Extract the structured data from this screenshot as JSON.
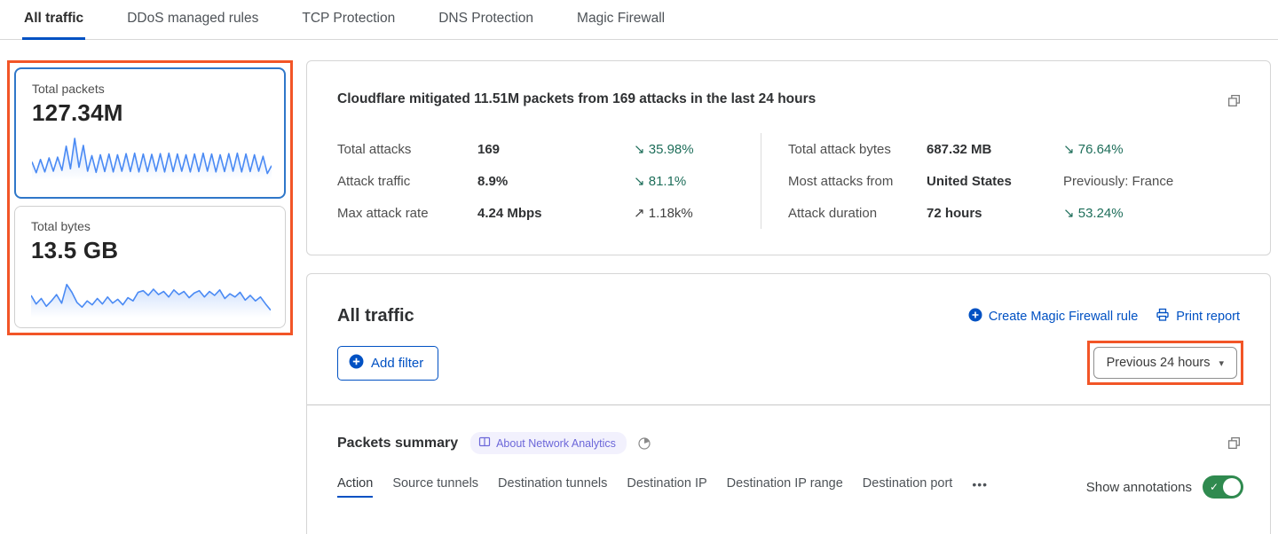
{
  "colors": {
    "link_blue": "#0051c3",
    "sparkline_blue": "#4a8af4",
    "selected_card_border": "#2f77c9",
    "highlight_orange": "#f25527",
    "trend_green": "#1e6e5a",
    "trend_neutral": "#3f3f3f",
    "previously_gray": "#4f4f4f",
    "toggle_green": "#2f8a4f",
    "badge_purple": "#6c67d9"
  },
  "tabs": [
    {
      "label": "All traffic",
      "active": true
    },
    {
      "label": "DDoS managed rules",
      "active": false
    },
    {
      "label": "TCP Protection",
      "active": false
    },
    {
      "label": "DNS Protection",
      "active": false
    },
    {
      "label": "Magic Firewall",
      "active": false
    }
  ],
  "metrics": {
    "packets": {
      "label": "Total packets",
      "value": "127.34M",
      "sparkline": [
        40,
        12,
        46,
        14,
        50,
        16,
        52,
        18,
        80,
        22,
        100,
        26,
        82,
        16,
        56,
        13,
        58,
        15,
        60,
        14,
        58,
        16,
        61,
        15,
        62,
        14,
        60,
        15,
        59,
        16,
        61,
        14,
        62,
        15,
        60,
        16,
        58,
        14,
        60,
        15,
        62,
        16,
        60,
        14,
        58,
        15,
        61,
        16,
        62,
        14,
        60,
        15,
        58,
        16,
        54,
        10,
        30
      ]
    },
    "bytes": {
      "label": "Total bytes",
      "value": "13.5 GB",
      "sparkline": [
        50,
        28,
        42,
        22,
        36,
        52,
        30,
        78,
        58,
        32,
        20,
        36,
        26,
        42,
        28,
        46,
        30,
        40,
        26,
        44,
        36,
        58,
        62,
        50,
        66,
        52,
        60,
        46,
        64,
        52,
        60,
        44,
        56,
        62,
        46,
        60,
        50,
        64,
        42,
        54,
        46,
        58,
        38,
        50,
        36,
        46,
        28,
        12
      ]
    }
  },
  "attack_summary": {
    "title": "Cloudflare mitigated 11.51M packets from 169 attacks in the last 24 hours",
    "stats_left": [
      {
        "label": "Total attacks",
        "value": "169",
        "delta": "↘ 35.98%",
        "delta_color": "#1e6e5a"
      },
      {
        "label": "Attack traffic",
        "value": "8.9%",
        "delta": "↘ 81.1%",
        "delta_color": "#1e6e5a"
      },
      {
        "label": "Max attack rate",
        "value": "4.24 Mbps",
        "delta": "↗ 1.18k%",
        "delta_color": "#3f3f3f"
      }
    ],
    "stats_right": [
      {
        "label": "Total attack bytes",
        "value": "687.32 MB",
        "delta": "↘ 76.64%",
        "delta_color": "#1e6e5a"
      },
      {
        "label": "Most attacks from",
        "value": "United States",
        "delta": "Previously: France",
        "delta_color": "#4f4f4f"
      },
      {
        "label": "Attack duration",
        "value": "72 hours",
        "delta": "↘ 53.24%",
        "delta_color": "#1e6e5a"
      }
    ]
  },
  "traffic_panel": {
    "title": "All traffic",
    "create_rule_label": "Create Magic Firewall rule",
    "print_label": "Print report",
    "add_filter_label": "Add filter",
    "time_range": "Previous 24 hours",
    "caret": "▾"
  },
  "packets_summary": {
    "title": "Packets summary",
    "badge_label": "About Network Analytics",
    "subtabs": [
      {
        "label": "Action",
        "active": true
      },
      {
        "label": "Source tunnels",
        "active": false
      },
      {
        "label": "Destination tunnels",
        "active": false
      },
      {
        "label": "Destination IP",
        "active": false
      },
      {
        "label": "Destination IP range",
        "active": false
      },
      {
        "label": "Destination port",
        "active": false
      }
    ],
    "more_label": "•••",
    "show_annotations_label": "Show annotations",
    "toggle_on": true,
    "toggle_check": "✓"
  }
}
